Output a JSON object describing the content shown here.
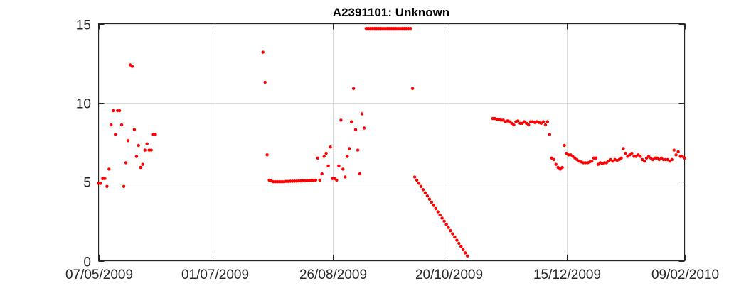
{
  "chart_data": {
    "type": "scatter",
    "title": "A2391101: Unknown",
    "xlabel": "",
    "ylabel": "",
    "x_axis_type": "date",
    "xlim": [
      "2009-05-07",
      "2010-02-09"
    ],
    "ylim": [
      0,
      15
    ],
    "x_ticks": [
      "2009-05-07",
      "2009-07-01",
      "2009-08-26",
      "2009-10-20",
      "2009-12-15",
      "2010-02-09"
    ],
    "x_tick_labels": [
      "07/05/2009",
      "01/07/2009",
      "26/08/2009",
      "20/10/2009",
      "15/12/2009",
      "09/02/2010"
    ],
    "y_ticks": [
      0,
      5,
      10,
      15
    ],
    "y_tick_labels": [
      "0",
      "5",
      "10",
      "15"
    ],
    "grid": true,
    "marker_color": "#ff0000",
    "series": [
      {
        "points": [
          [
            "2009-05-07",
            4.9
          ],
          [
            "2009-05-08",
            4.9
          ],
          [
            "2009-05-09",
            5.2
          ],
          [
            "2009-05-10",
            5.2
          ],
          [
            "2009-05-11",
            4.7
          ],
          [
            "2009-05-12",
            5.8
          ],
          [
            "2009-05-13",
            8.6
          ],
          [
            "2009-05-14",
            9.5
          ],
          [
            "2009-05-15",
            8.0
          ],
          [
            "2009-05-16",
            9.5
          ],
          [
            "2009-05-17",
            9.5
          ],
          [
            "2009-05-18",
            8.6
          ],
          [
            "2009-05-19",
            4.7
          ],
          [
            "2009-05-20",
            6.2
          ],
          [
            "2009-05-21",
            7.6
          ],
          [
            "2009-05-22",
            12.4
          ],
          [
            "2009-05-23",
            12.3
          ],
          [
            "2009-05-24",
            8.3
          ],
          [
            "2009-05-25",
            6.6
          ],
          [
            "2009-05-26",
            7.3
          ],
          [
            "2009-05-27",
            5.9
          ],
          [
            "2009-05-28",
            6.1
          ],
          [
            "2009-05-29",
            7.0
          ],
          [
            "2009-05-30",
            7.4
          ],
          [
            "2009-05-31",
            7.0
          ],
          [
            "2009-06-01",
            7.0
          ],
          [
            "2009-06-02",
            8.0
          ],
          [
            "2009-06-03",
            8.0
          ],
          [
            "2009-07-24",
            13.2
          ],
          [
            "2009-07-25",
            11.3
          ],
          [
            "2009-07-26",
            6.7
          ],
          [
            "2009-07-27",
            5.1
          ],
          [
            "2009-07-28",
            5.05
          ],
          [
            "2009-07-29",
            5.0
          ],
          [
            "2009-07-30",
            5.0
          ],
          [
            "2009-07-31",
            5.0
          ],
          [
            "2009-08-01",
            5.0
          ],
          [
            "2009-08-02",
            5.0
          ],
          [
            "2009-08-03",
            5.0
          ],
          [
            "2009-08-04",
            5.02
          ],
          [
            "2009-08-05",
            5.02
          ],
          [
            "2009-08-06",
            5.03
          ],
          [
            "2009-08-07",
            5.03
          ],
          [
            "2009-08-08",
            5.04
          ],
          [
            "2009-08-09",
            5.04
          ],
          [
            "2009-08-10",
            5.05
          ],
          [
            "2009-08-11",
            5.05
          ],
          [
            "2009-08-12",
            5.06
          ],
          [
            "2009-08-13",
            5.06
          ],
          [
            "2009-08-14",
            5.07
          ],
          [
            "2009-08-15",
            5.08
          ],
          [
            "2009-08-16",
            5.08
          ],
          [
            "2009-08-17",
            5.09
          ],
          [
            "2009-08-18",
            5.1
          ],
          [
            "2009-08-19",
            6.5
          ],
          [
            "2009-08-20",
            5.1
          ],
          [
            "2009-08-21",
            5.5
          ],
          [
            "2009-08-22",
            6.6
          ],
          [
            "2009-08-23",
            6.8
          ],
          [
            "2009-08-24",
            6.0
          ],
          [
            "2009-08-25",
            7.2
          ],
          [
            "2009-08-26",
            5.2
          ],
          [
            "2009-08-27",
            5.2
          ],
          [
            "2009-08-28",
            5.1
          ],
          [
            "2009-08-29",
            6.0
          ],
          [
            "2009-08-30",
            8.9
          ],
          [
            "2009-08-31",
            5.8
          ],
          [
            "2009-09-01",
            5.3
          ],
          [
            "2009-09-02",
            6.6
          ],
          [
            "2009-09-03",
            7.1
          ],
          [
            "2009-09-04",
            8.8
          ],
          [
            "2009-09-05",
            10.9
          ],
          [
            "2009-09-06",
            8.3
          ],
          [
            "2009-09-07",
            7.0
          ],
          [
            "2009-09-08",
            5.5
          ],
          [
            "2009-09-09",
            9.3
          ],
          [
            "2009-09-10",
            8.4
          ],
          [
            "2009-09-11",
            14.7
          ],
          [
            "2009-09-12",
            14.7
          ],
          [
            "2009-09-13",
            14.7
          ],
          [
            "2009-09-14",
            14.7
          ],
          [
            "2009-09-15",
            14.7
          ],
          [
            "2009-09-16",
            14.7
          ],
          [
            "2009-09-17",
            14.7
          ],
          [
            "2009-09-18",
            14.7
          ],
          [
            "2009-09-19",
            14.7
          ],
          [
            "2009-09-20",
            14.7
          ],
          [
            "2009-09-21",
            14.7
          ],
          [
            "2009-09-22",
            14.7
          ],
          [
            "2009-09-23",
            14.7
          ],
          [
            "2009-09-24",
            14.7
          ],
          [
            "2009-09-25",
            14.7
          ],
          [
            "2009-09-26",
            14.7
          ],
          [
            "2009-09-27",
            14.7
          ],
          [
            "2009-09-28",
            14.7
          ],
          [
            "2009-09-29",
            14.7
          ],
          [
            "2009-09-30",
            14.7
          ],
          [
            "2009-10-01",
            14.7
          ],
          [
            "2009-10-02",
            14.7
          ],
          [
            "2009-10-03",
            10.9
          ],
          [
            "2009-10-04",
            5.3
          ],
          [
            "2009-10-05",
            5.1
          ],
          [
            "2009-10-06",
            4.9
          ],
          [
            "2009-10-07",
            4.7
          ],
          [
            "2009-10-08",
            4.5
          ],
          [
            "2009-10-09",
            4.3
          ],
          [
            "2009-10-10",
            4.1
          ],
          [
            "2009-10-11",
            3.9
          ],
          [
            "2009-10-12",
            3.7
          ],
          [
            "2009-10-13",
            3.5
          ],
          [
            "2009-10-14",
            3.3
          ],
          [
            "2009-10-15",
            3.1
          ],
          [
            "2009-10-16",
            2.9
          ],
          [
            "2009-10-17",
            2.7
          ],
          [
            "2009-10-18",
            2.5
          ],
          [
            "2009-10-19",
            2.3
          ],
          [
            "2009-10-20",
            2.1
          ],
          [
            "2009-10-21",
            1.9
          ],
          [
            "2009-10-22",
            1.7
          ],
          [
            "2009-10-23",
            1.5
          ],
          [
            "2009-10-24",
            1.3
          ],
          [
            "2009-10-25",
            1.1
          ],
          [
            "2009-10-26",
            0.9
          ],
          [
            "2009-10-27",
            0.7
          ],
          [
            "2009-10-28",
            0.5
          ],
          [
            "2009-10-29",
            0.3
          ],
          [
            "2009-11-10",
            9.0
          ],
          [
            "2009-11-11",
            9.0
          ],
          [
            "2009-11-12",
            8.95
          ],
          [
            "2009-11-13",
            8.95
          ],
          [
            "2009-11-14",
            8.9
          ],
          [
            "2009-11-15",
            8.9
          ],
          [
            "2009-11-16",
            8.8
          ],
          [
            "2009-11-17",
            8.85
          ],
          [
            "2009-11-18",
            8.8
          ],
          [
            "2009-11-19",
            8.7
          ],
          [
            "2009-11-20",
            8.6
          ],
          [
            "2009-11-21",
            8.8
          ],
          [
            "2009-11-22",
            8.85
          ],
          [
            "2009-11-23",
            8.7
          ],
          [
            "2009-11-24",
            8.7
          ],
          [
            "2009-11-25",
            8.8
          ],
          [
            "2009-11-26",
            8.7
          ],
          [
            "2009-11-27",
            8.6
          ],
          [
            "2009-11-28",
            8.8
          ],
          [
            "2009-11-29",
            8.8
          ],
          [
            "2009-11-30",
            8.75
          ],
          [
            "2009-12-01",
            8.8
          ],
          [
            "2009-12-02",
            8.75
          ],
          [
            "2009-12-03",
            8.7
          ],
          [
            "2009-12-04",
            8.8
          ],
          [
            "2009-12-05",
            8.6
          ],
          [
            "2009-12-06",
            8.8
          ],
          [
            "2009-12-07",
            8.0
          ],
          [
            "2009-12-08",
            6.5
          ],
          [
            "2009-12-09",
            6.4
          ],
          [
            "2009-12-10",
            6.1
          ],
          [
            "2009-12-11",
            5.9
          ],
          [
            "2009-12-12",
            5.8
          ],
          [
            "2009-12-13",
            5.9
          ],
          [
            "2009-12-14",
            7.3
          ],
          [
            "2009-12-15",
            6.8
          ],
          [
            "2009-12-16",
            6.7
          ],
          [
            "2009-12-17",
            6.7
          ],
          [
            "2009-12-18",
            6.6
          ],
          [
            "2009-12-19",
            6.5
          ],
          [
            "2009-12-20",
            6.4
          ],
          [
            "2009-12-21",
            6.3
          ],
          [
            "2009-12-22",
            6.25
          ],
          [
            "2009-12-23",
            6.2
          ],
          [
            "2009-12-24",
            6.2
          ],
          [
            "2009-12-25",
            6.2
          ],
          [
            "2009-12-26",
            6.25
          ],
          [
            "2009-12-27",
            6.3
          ],
          [
            "2009-12-28",
            6.5
          ],
          [
            "2009-12-29",
            6.5
          ],
          [
            "2009-12-30",
            6.1
          ],
          [
            "2009-12-31",
            6.2
          ],
          [
            "2010-01-01",
            6.15
          ],
          [
            "2010-01-02",
            6.2
          ],
          [
            "2010-01-03",
            6.2
          ],
          [
            "2010-01-04",
            6.3
          ],
          [
            "2010-01-05",
            6.4
          ],
          [
            "2010-01-06",
            6.3
          ],
          [
            "2010-01-07",
            6.4
          ],
          [
            "2010-01-08",
            6.35
          ],
          [
            "2010-01-09",
            6.4
          ],
          [
            "2010-01-10",
            6.5
          ],
          [
            "2010-01-11",
            7.1
          ],
          [
            "2010-01-12",
            6.8
          ],
          [
            "2010-01-13",
            6.6
          ],
          [
            "2010-01-14",
            6.7
          ],
          [
            "2010-01-15",
            6.8
          ],
          [
            "2010-01-16",
            6.6
          ],
          [
            "2010-01-17",
            6.6
          ],
          [
            "2010-01-18",
            6.7
          ],
          [
            "2010-01-19",
            6.6
          ],
          [
            "2010-01-20",
            6.4
          ],
          [
            "2010-01-21",
            6.3
          ],
          [
            "2010-01-22",
            6.5
          ],
          [
            "2010-01-23",
            6.6
          ],
          [
            "2010-01-24",
            6.5
          ],
          [
            "2010-01-25",
            6.4
          ],
          [
            "2010-01-26",
            6.5
          ],
          [
            "2010-01-27",
            6.5
          ],
          [
            "2010-01-28",
            6.4
          ],
          [
            "2010-01-29",
            6.5
          ],
          [
            "2010-01-30",
            6.4
          ],
          [
            "2010-01-31",
            6.4
          ],
          [
            "2010-02-01",
            6.4
          ],
          [
            "2010-02-02",
            6.3
          ],
          [
            "2010-02-03",
            6.4
          ],
          [
            "2010-02-04",
            7.0
          ],
          [
            "2010-02-05",
            6.7
          ],
          [
            "2010-02-06",
            6.9
          ],
          [
            "2010-02-07",
            6.6
          ],
          [
            "2010-02-08",
            6.6
          ],
          [
            "2010-02-09",
            6.5
          ]
        ]
      }
    ]
  }
}
